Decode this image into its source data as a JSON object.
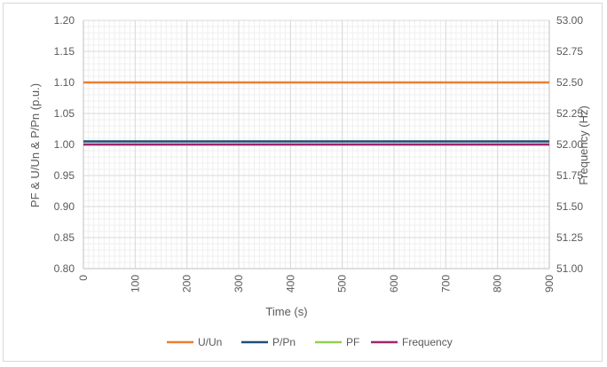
{
  "chart_data": {
    "type": "line",
    "xlabel": "Time (s)",
    "ylabel": "PF & U/Un & P/Pn (p.u.)",
    "y2label": "Frequency (Hz)",
    "xlim": [
      0,
      900
    ],
    "ylim": [
      0.8,
      1.2
    ],
    "y2lim": [
      51.0,
      53.0
    ],
    "x_ticks": [
      "0",
      "100",
      "200",
      "300",
      "400",
      "500",
      "600",
      "700",
      "800",
      "900"
    ],
    "y_ticks": [
      "0.80",
      "0.85",
      "0.90",
      "0.95",
      "1.00",
      "1.05",
      "1.10",
      "1.15",
      "1.20"
    ],
    "y2_ticks": [
      "51.00",
      "51.25",
      "51.50",
      "51.75",
      "52.00",
      "52.25",
      "52.50",
      "52.75",
      "53.00"
    ],
    "grid": true,
    "legend_position": "bottom",
    "series": [
      {
        "name": "U/Un",
        "axis": "left",
        "color": "#ED7D31",
        "x": [
          0,
          900
        ],
        "y": [
          1.1,
          1.1
        ]
      },
      {
        "name": "P/Pn",
        "axis": "left",
        "color": "#1F4E79",
        "x": [
          0,
          900
        ],
        "y": [
          1.005,
          1.005
        ]
      },
      {
        "name": "PF",
        "axis": "left",
        "color": "#92D050",
        "x": [
          0,
          900
        ],
        "y": [
          1.0,
          1.0
        ]
      },
      {
        "name": "Frequency",
        "axis": "right",
        "color": "#A0266E",
        "x": [
          0,
          900
        ],
        "y": [
          52.0,
          52.0
        ]
      }
    ]
  }
}
